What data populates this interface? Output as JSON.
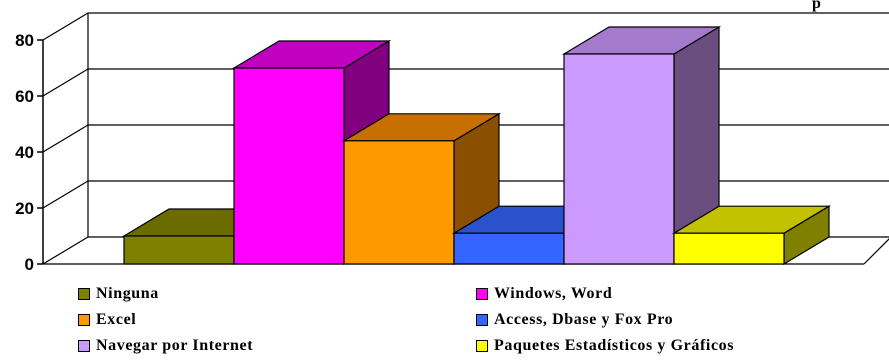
{
  "chart_data": {
    "type": "bar",
    "title": "p",
    "categories": [
      "Ninguna",
      "Windows, Word",
      "Excel",
      "Access, Dbase y Fox Pro",
      "Navegar por Internet",
      "Paquetes Estadísticos y Gráficos"
    ],
    "values": [
      10,
      70,
      44,
      11,
      75,
      11
    ],
    "colors": [
      "#808000",
      "#ff00ff",
      "#ff9900",
      "#3366ff",
      "#cc99ff",
      "#ffff00"
    ],
    "side_colors": [
      "#5e5e00",
      "#800080",
      "#8a5000",
      "#1d3b99",
      "#6a4e80",
      "#808000"
    ],
    "top_colors": [
      "#6b6b00",
      "#c200c2",
      "#c76f00",
      "#2952cc",
      "#a37acc",
      "#c2c200"
    ],
    "y_ticks": [
      "0",
      "20",
      "40",
      "60",
      "80"
    ],
    "ylim": [
      0,
      80
    ],
    "grid": true,
    "legend_position": "bottom",
    "style": "3d"
  }
}
